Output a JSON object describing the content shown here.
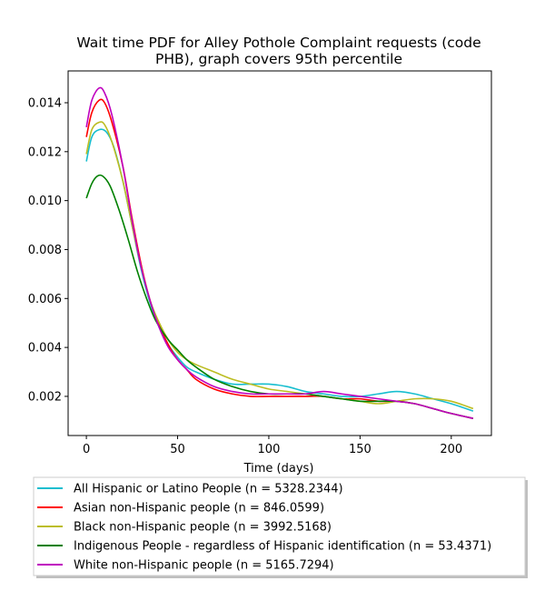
{
  "chart_data": {
    "type": "line",
    "title": "Wait time PDF for Alley Pothole Complaint  requests (code PHB), graph covers 95th percentile",
    "title_lines": [
      "Wait time PDF for Alley Pothole Complaint  requests (code",
      "PHB), graph covers 95th percentile"
    ],
    "xlabel": "Time (days)",
    "ylabel": "",
    "xlim": [
      -10,
      222
    ],
    "ylim": [
      0.0004,
      0.0153
    ],
    "xticks": [
      0,
      50,
      100,
      150,
      200
    ],
    "xtick_labels": [
      "0",
      "50",
      "100",
      "150",
      "200"
    ],
    "yticks": [
      0.002,
      0.004,
      0.006,
      0.008,
      0.01,
      0.012,
      0.014
    ],
    "ytick_labels": [
      "0.002",
      "0.004",
      "0.006",
      "0.008",
      "0.010",
      "0.012",
      "0.014"
    ],
    "grid": false,
    "legend_position": "below plot",
    "series": [
      {
        "name": "All Hispanic or Latino People (n = 5328.2344)",
        "color": "#17becf",
        "x": [
          0,
          3,
          7,
          11,
          15,
          20,
          25,
          30,
          35,
          40,
          45,
          50,
          55,
          60,
          70,
          80,
          90,
          100,
          110,
          120,
          130,
          140,
          150,
          160,
          170,
          180,
          190,
          200,
          212
        ],
        "y": [
          0.0116,
          0.0126,
          0.0129,
          0.0128,
          0.0122,
          0.0108,
          0.009,
          0.0072,
          0.0058,
          0.0048,
          0.0041,
          0.0036,
          0.0032,
          0.003,
          0.0027,
          0.0025,
          0.0025,
          0.0025,
          0.0024,
          0.0022,
          0.0021,
          0.002,
          0.002,
          0.0021,
          0.0022,
          0.0021,
          0.0019,
          0.0017,
          0.0014
        ]
      },
      {
        "name": "Asian non-Hispanic people (n = 846.0599)",
        "color": "#ff0000",
        "x": [
          0,
          3,
          7,
          10,
          14,
          20,
          25,
          30,
          35,
          40,
          45,
          50,
          55,
          60,
          70,
          80,
          90,
          100,
          110,
          120,
          130,
          140,
          150,
          160,
          170,
          180,
          190,
          200,
          212
        ],
        "y": [
          0.0126,
          0.0136,
          0.0141,
          0.014,
          0.0132,
          0.0114,
          0.0093,
          0.0074,
          0.0059,
          0.0049,
          0.0041,
          0.0035,
          0.0031,
          0.0027,
          0.0023,
          0.0021,
          0.002,
          0.002,
          0.002,
          0.002,
          0.002,
          0.0019,
          0.0019,
          0.0018,
          0.0018,
          0.0017,
          0.0015,
          0.0013,
          0.0011
        ]
      },
      {
        "name": "Black non-Hispanic people (n = 3992.5168)",
        "color": "#bcbd22",
        "x": [
          0,
          3,
          7,
          10,
          14,
          20,
          25,
          30,
          35,
          40,
          45,
          50,
          55,
          60,
          70,
          80,
          90,
          100,
          110,
          120,
          130,
          140,
          150,
          160,
          170,
          180,
          190,
          200,
          212
        ],
        "y": [
          0.0119,
          0.0129,
          0.0132,
          0.0131,
          0.0124,
          0.0108,
          0.009,
          0.0073,
          0.0059,
          0.005,
          0.0043,
          0.0038,
          0.0035,
          0.0033,
          0.003,
          0.0027,
          0.0025,
          0.0023,
          0.0022,
          0.0021,
          0.002,
          0.0019,
          0.0018,
          0.0017,
          0.0018,
          0.0019,
          0.0019,
          0.0018,
          0.0015
        ]
      },
      {
        "name": "Indigenous People - regardless of Hispanic identification (n = 53.4371)",
        "color": "#008000",
        "x": [
          0,
          3,
          6,
          9,
          13,
          18,
          23,
          28,
          33,
          38,
          45,
          50,
          55,
          60,
          70,
          80,
          90,
          100,
          110,
          120,
          130,
          140,
          150,
          160,
          170,
          180,
          190,
          200,
          212
        ],
        "y": [
          0.0101,
          0.0107,
          0.011,
          0.011,
          0.0106,
          0.0096,
          0.0084,
          0.0071,
          0.006,
          0.0051,
          0.0043,
          0.0039,
          0.0035,
          0.0032,
          0.0027,
          0.0024,
          0.0022,
          0.0021,
          0.0021,
          0.0021,
          0.002,
          0.0019,
          0.0018,
          0.0018,
          0.0018,
          0.0017,
          0.0015,
          0.0013,
          0.0011
        ]
      },
      {
        "name": "White non-Hispanic people (n = 5165.7294)",
        "color": "#bf00bf",
        "x": [
          0,
          3,
          7,
          10,
          14,
          20,
          25,
          30,
          35,
          40,
          45,
          50,
          55,
          60,
          70,
          80,
          90,
          100,
          110,
          120,
          130,
          140,
          150,
          160,
          170,
          180,
          190,
          200,
          212
        ],
        "y": [
          0.013,
          0.0141,
          0.0146,
          0.0144,
          0.0135,
          0.0114,
          0.0092,
          0.0073,
          0.0059,
          0.0048,
          0.004,
          0.0035,
          0.0031,
          0.0028,
          0.0024,
          0.0022,
          0.0021,
          0.0021,
          0.0021,
          0.0021,
          0.0022,
          0.0021,
          0.002,
          0.0019,
          0.0018,
          0.0017,
          0.0015,
          0.0013,
          0.0011
        ]
      }
    ]
  }
}
